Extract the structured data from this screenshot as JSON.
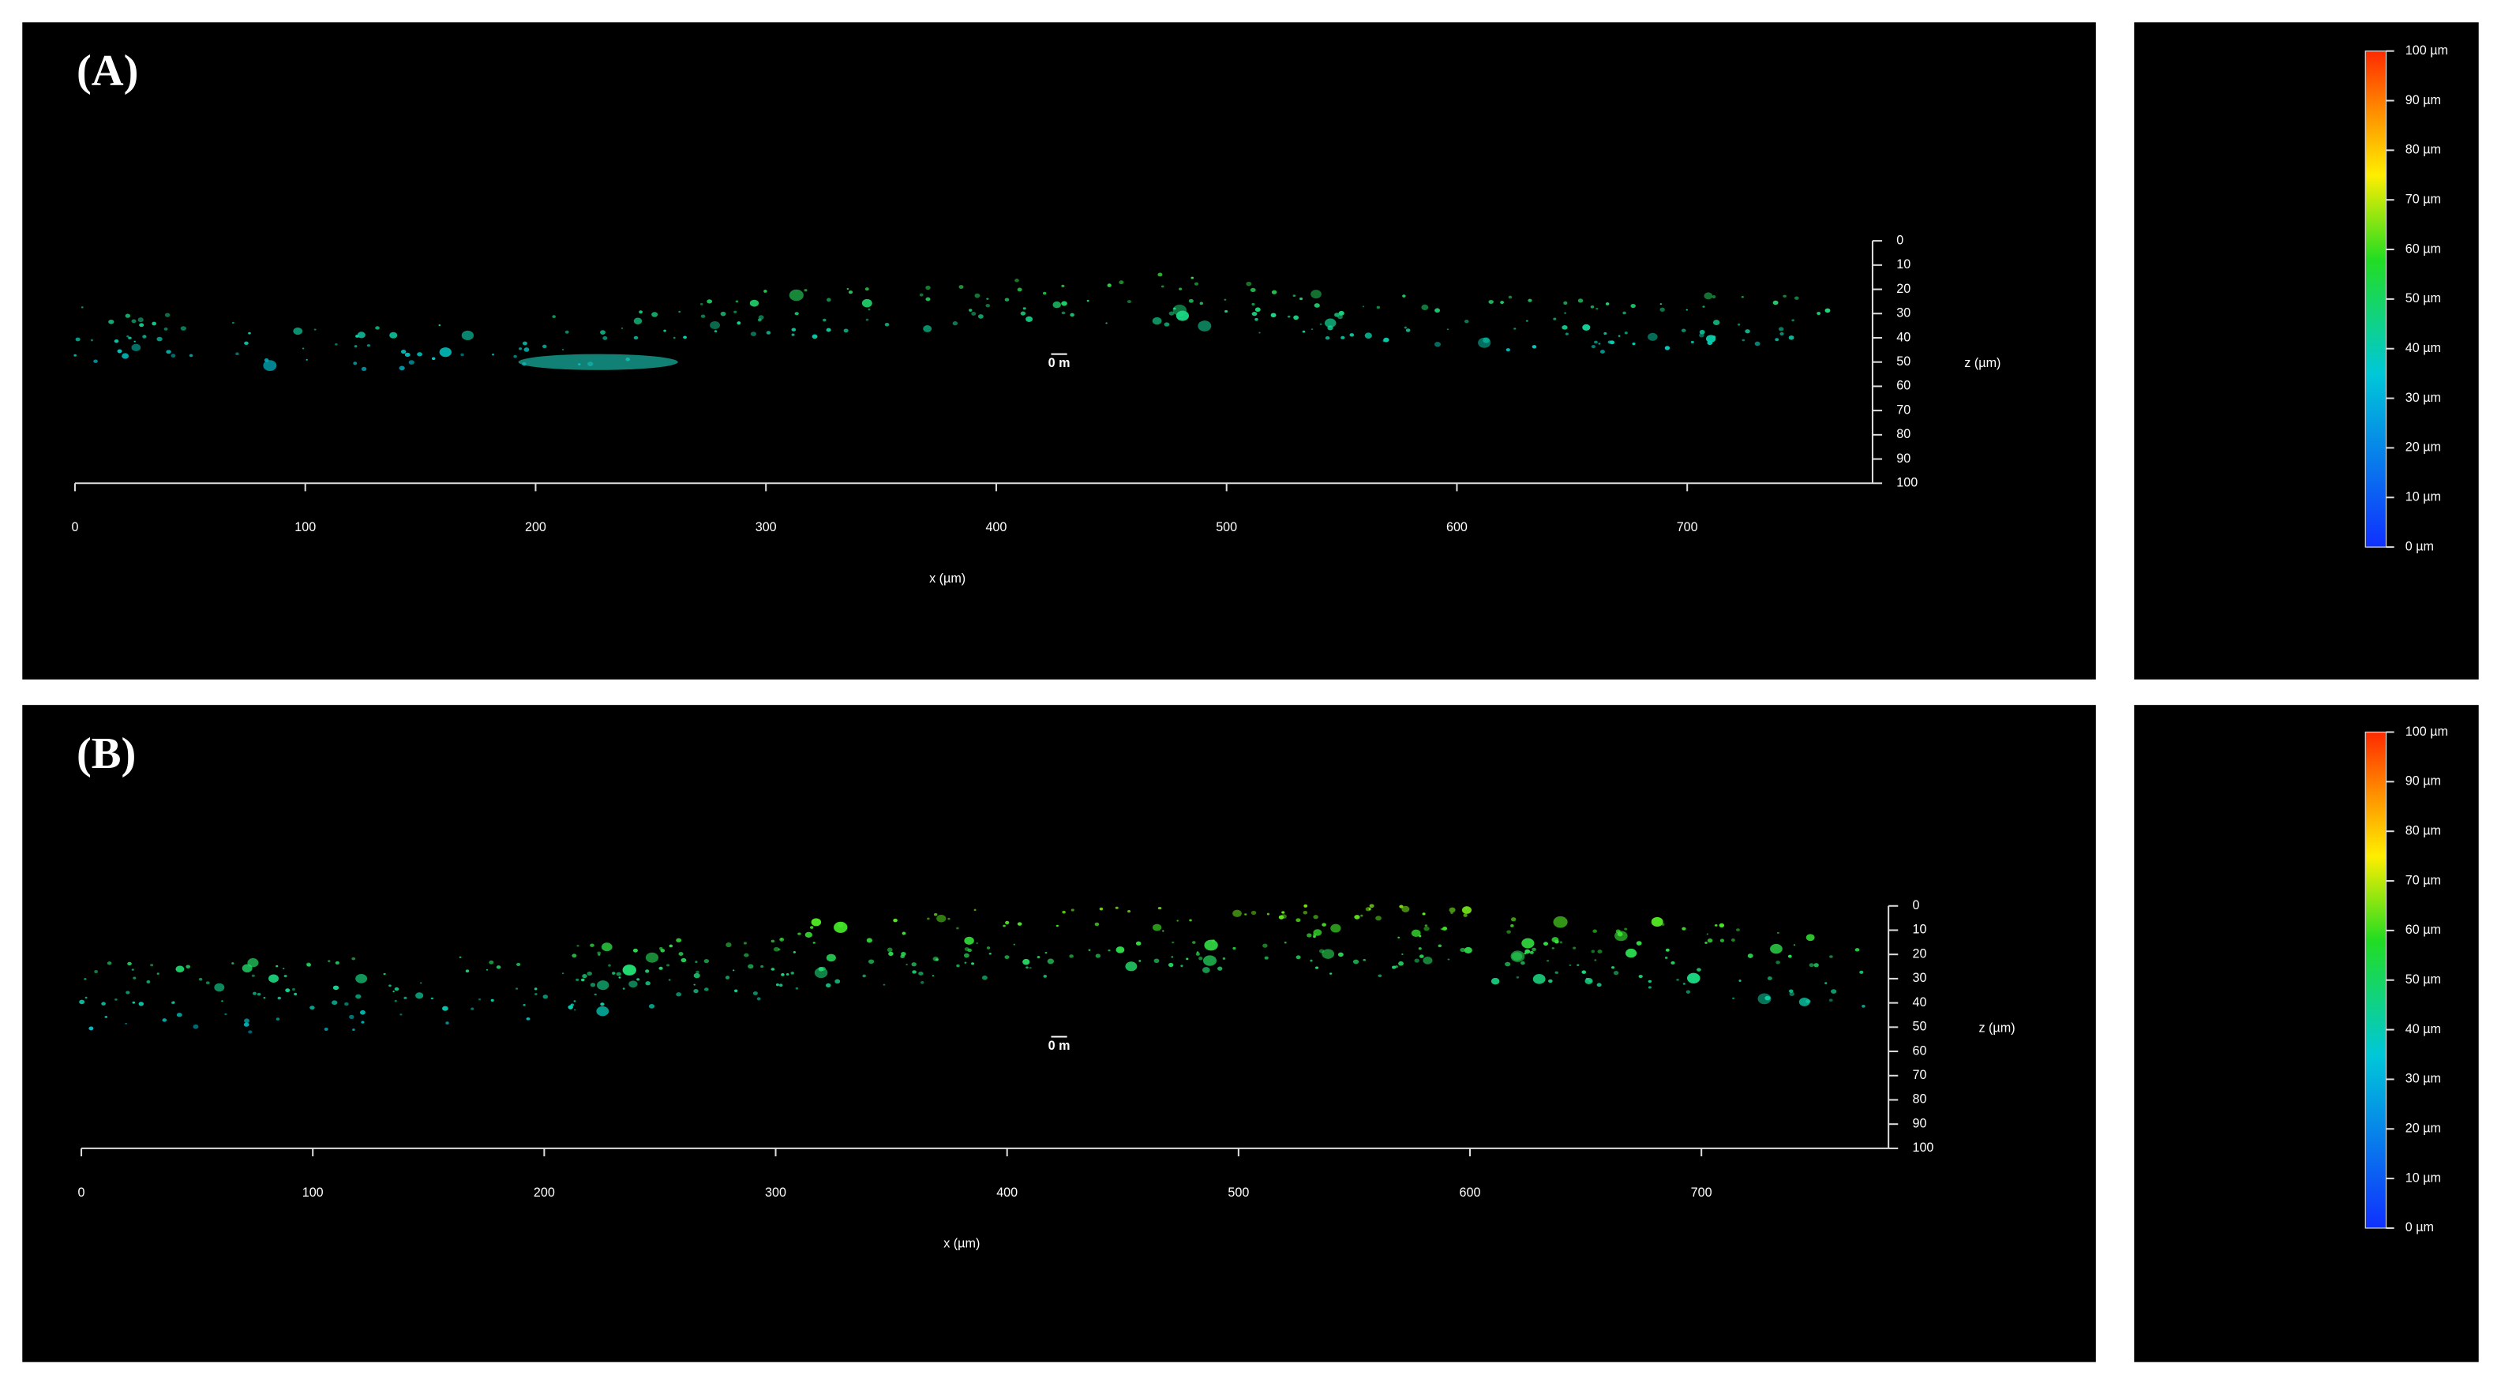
{
  "panels": [
    {
      "label": "(A)",
      "x_axis": {
        "label": "x (µm)",
        "ticks": [
          0,
          100,
          200,
          300,
          400,
          500,
          600,
          700
        ]
      },
      "z_axis": {
        "label": "z (µm)",
        "ticks": [
          0,
          10,
          20,
          30,
          40,
          50,
          60,
          70,
          80,
          90,
          100
        ]
      },
      "scale_label": "0 m",
      "colorbar": {
        "labels": [
          "100 µm",
          "90 µm",
          "80 µm",
          "70 µm",
          "60 µm",
          "50 µm",
          "40 µm",
          "30 µm",
          "20 µm",
          "10 µm",
          "0 µm"
        ]
      }
    },
    {
      "label": "(B)",
      "x_axis": {
        "label": "x (µm)",
        "ticks": [
          0,
          100,
          200,
          300,
          400,
          500,
          600,
          700
        ]
      },
      "z_axis": {
        "label": "z (µm)",
        "ticks": [
          0,
          10,
          20,
          30,
          40,
          50,
          60,
          70,
          80,
          90,
          100
        ]
      },
      "scale_label": "0 m",
      "colorbar": {
        "labels": [
          "100 µm",
          "90 µm",
          "80 µm",
          "70 µm",
          "60 µm",
          "50 µm",
          "40 µm",
          "30 µm",
          "20 µm",
          "10 µm",
          "0 µm"
        ]
      }
    }
  ]
}
